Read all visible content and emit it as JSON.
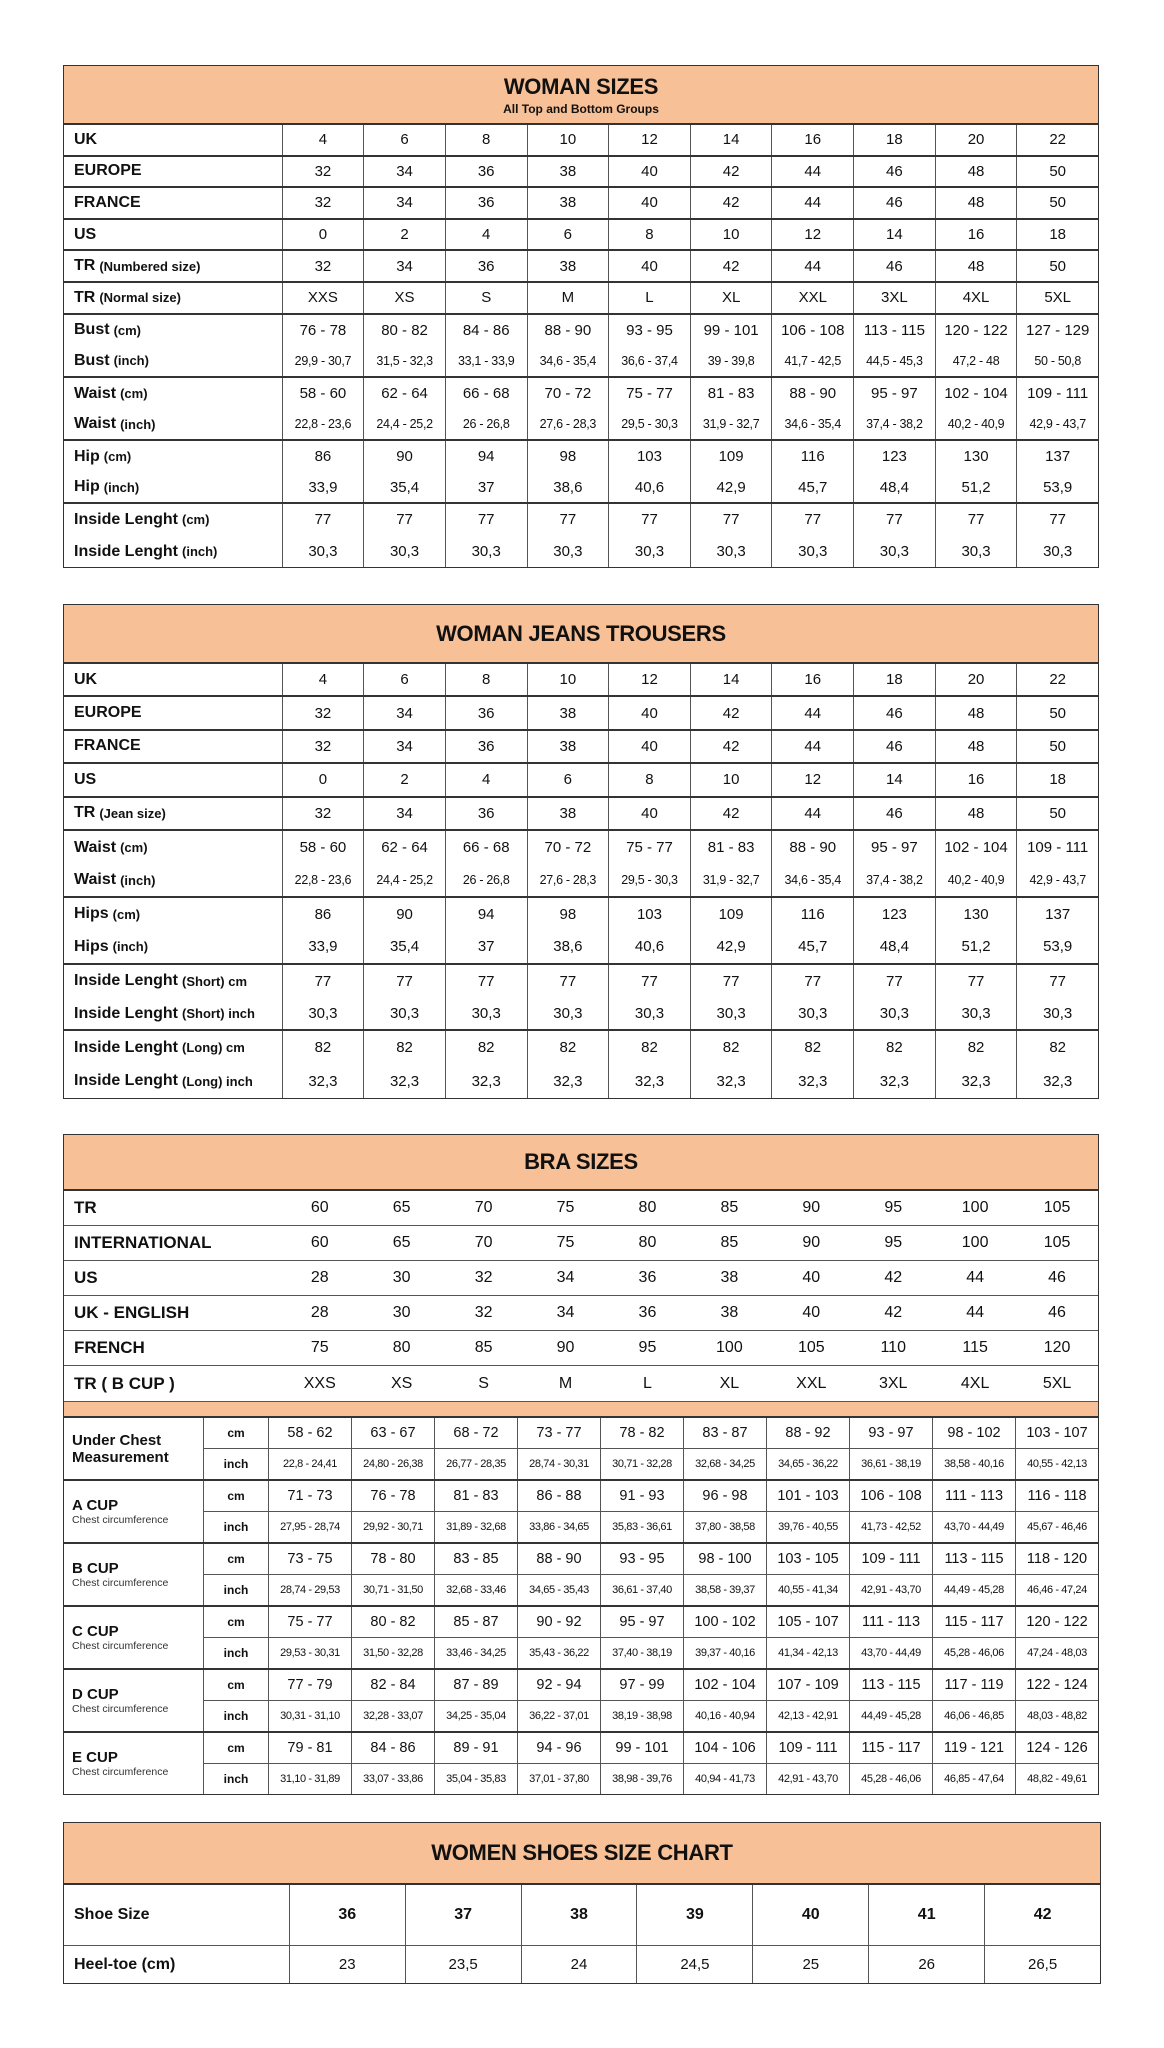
{
  "woman_sizes": {
    "title": "WOMAN SIZES",
    "subtitle": "All Top and Bottom Groups",
    "groups": [
      [
        {
          "label": "UK",
          "unit": "",
          "values": [
            "4",
            "6",
            "8",
            "10",
            "12",
            "14",
            "16",
            "18",
            "20",
            "22"
          ]
        }
      ],
      [
        {
          "label": "EUROPE",
          "unit": "",
          "values": [
            "32",
            "34",
            "36",
            "38",
            "40",
            "42",
            "44",
            "46",
            "48",
            "50"
          ]
        }
      ],
      [
        {
          "label": "FRANCE",
          "unit": "",
          "values": [
            "32",
            "34",
            "36",
            "38",
            "40",
            "42",
            "44",
            "46",
            "48",
            "50"
          ]
        }
      ],
      [
        {
          "label": "US",
          "unit": "",
          "values": [
            "0",
            "2",
            "4",
            "6",
            "8",
            "10",
            "12",
            "14",
            "16",
            "18"
          ]
        }
      ],
      [
        {
          "label": "TR",
          "unit": "(Numbered size)",
          "values": [
            "32",
            "34",
            "36",
            "38",
            "40",
            "42",
            "44",
            "46",
            "48",
            "50"
          ]
        }
      ],
      [
        {
          "label": "TR",
          "unit": "(Normal size)",
          "values": [
            "XXS",
            "XS",
            "S",
            "M",
            "L",
            "XL",
            "XXL",
            "3XL",
            "4XL",
            "5XL"
          ]
        }
      ],
      [
        {
          "label": "Bust",
          "unit": "(cm)",
          "values": [
            "76 - 78",
            "80 - 82",
            "84 - 86",
            "88 - 90",
            "93 - 95",
            "99 - 101",
            "106 - 108",
            "113 - 115",
            "120 - 122",
            "127 - 129"
          ]
        },
        {
          "label": "Bust",
          "unit": "(inch)",
          "small": true,
          "values": [
            "29,9 - 30,7",
            "31,5 - 32,3",
            "33,1 - 33,9",
            "34,6 - 35,4",
            "36,6 - 37,4",
            "39 - 39,8",
            "41,7 - 42,5",
            "44,5 - 45,3",
            "47,2 - 48",
            "50 - 50,8"
          ]
        }
      ],
      [
        {
          "label": "Waist",
          "unit": "(cm)",
          "values": [
            "58 - 60",
            "62 - 64",
            "66 - 68",
            "70 - 72",
            "75 - 77",
            "81 - 83",
            "88 - 90",
            "95 - 97",
            "102 - 104",
            "109 - 111"
          ]
        },
        {
          "label": "Waist",
          "unit": "(inch)",
          "small": true,
          "values": [
            "22,8 - 23,6",
            "24,4 - 25,2",
            "26 - 26,8",
            "27,6 - 28,3",
            "29,5 - 30,3",
            "31,9 - 32,7",
            "34,6 - 35,4",
            "37,4 - 38,2",
            "40,2 - 40,9",
            "42,9 - 43,7"
          ]
        }
      ],
      [
        {
          "label": "Hip",
          "unit": "(cm)",
          "values": [
            "86",
            "90",
            "94",
            "98",
            "103",
            "109",
            "116",
            "123",
            "130",
            "137"
          ]
        },
        {
          "label": "Hip",
          "unit": "(inch)",
          "values": [
            "33,9",
            "35,4",
            "37",
            "38,6",
            "40,6",
            "42,9",
            "45,7",
            "48,4",
            "51,2",
            "53,9"
          ]
        }
      ],
      [
        {
          "label": "Inside Lenght",
          "unit": "(cm)",
          "values": [
            "77",
            "77",
            "77",
            "77",
            "77",
            "77",
            "77",
            "77",
            "77",
            "77"
          ]
        },
        {
          "label": "Inside Lenght",
          "unit": "(inch)",
          "values": [
            "30,3",
            "30,3",
            "30,3",
            "30,3",
            "30,3",
            "30,3",
            "30,3",
            "30,3",
            "30,3",
            "30,3"
          ]
        }
      ]
    ]
  },
  "jeans": {
    "title": "WOMAN JEANS TROUSERS",
    "groups": [
      [
        {
          "label": "UK",
          "unit": "",
          "values": [
            "4",
            "6",
            "8",
            "10",
            "12",
            "14",
            "16",
            "18",
            "20",
            "22"
          ]
        }
      ],
      [
        {
          "label": "EUROPE",
          "unit": "",
          "values": [
            "32",
            "34",
            "36",
            "38",
            "40",
            "42",
            "44",
            "46",
            "48",
            "50"
          ]
        }
      ],
      [
        {
          "label": "FRANCE",
          "unit": "",
          "values": [
            "32",
            "34",
            "36",
            "38",
            "40",
            "42",
            "44",
            "46",
            "48",
            "50"
          ]
        }
      ],
      [
        {
          "label": "US",
          "unit": "",
          "values": [
            "0",
            "2",
            "4",
            "6",
            "8",
            "10",
            "12",
            "14",
            "16",
            "18"
          ]
        }
      ],
      [
        {
          "label": "TR",
          "unit": "(Jean size)",
          "values": [
            "32",
            "34",
            "36",
            "38",
            "40",
            "42",
            "44",
            "46",
            "48",
            "50"
          ]
        }
      ],
      [
        {
          "label": "Waist",
          "unit": "(cm)",
          "values": [
            "58 - 60",
            "62 - 64",
            "66 - 68",
            "70 - 72",
            "75 - 77",
            "81 - 83",
            "88 - 90",
            "95 - 97",
            "102 - 104",
            "109 - 111"
          ]
        },
        {
          "label": "Waist",
          "unit": "(inch)",
          "small": true,
          "values": [
            "22,8 - 23,6",
            "24,4 - 25,2",
            "26 - 26,8",
            "27,6 - 28,3",
            "29,5 - 30,3",
            "31,9 - 32,7",
            "34,6 - 35,4",
            "37,4 - 38,2",
            "40,2 - 40,9",
            "42,9 - 43,7"
          ]
        }
      ],
      [
        {
          "label": "Hips",
          "unit": "(cm)",
          "values": [
            "86",
            "90",
            "94",
            "98",
            "103",
            "109",
            "116",
            "123",
            "130",
            "137"
          ]
        },
        {
          "label": "Hips",
          "unit": "(inch)",
          "values": [
            "33,9",
            "35,4",
            "37",
            "38,6",
            "40,6",
            "42,9",
            "45,7",
            "48,4",
            "51,2",
            "53,9"
          ]
        }
      ],
      [
        {
          "label": "Inside Lenght",
          "unit": "(Short) cm",
          "values": [
            "77",
            "77",
            "77",
            "77",
            "77",
            "77",
            "77",
            "77",
            "77",
            "77"
          ]
        },
        {
          "label": "Inside Lenght",
          "unit": "(Short) inch",
          "values": [
            "30,3",
            "30,3",
            "30,3",
            "30,3",
            "30,3",
            "30,3",
            "30,3",
            "30,3",
            "30,3",
            "30,3"
          ]
        }
      ],
      [
        {
          "label": "Inside Lenght",
          "unit": "(Long) cm",
          "values": [
            "82",
            "82",
            "82",
            "82",
            "82",
            "82",
            "82",
            "82",
            "82",
            "82"
          ]
        },
        {
          "label": "Inside Lenght",
          "unit": "(Long) inch",
          "values": [
            "32,3",
            "32,3",
            "32,3",
            "32,3",
            "32,3",
            "32,3",
            "32,3",
            "32,3",
            "32,3",
            "32,3"
          ]
        }
      ]
    ]
  },
  "bra": {
    "title": "BRA SIZES",
    "sizes": [
      {
        "label": "TR",
        "values": [
          "60",
          "65",
          "70",
          "75",
          "80",
          "85",
          "90",
          "95",
          "100",
          "105"
        ]
      },
      {
        "label": "INTERNATIONAL",
        "values": [
          "60",
          "65",
          "70",
          "75",
          "80",
          "85",
          "90",
          "95",
          "100",
          "105"
        ]
      },
      {
        "label": "US",
        "values": [
          "28",
          "30",
          "32",
          "34",
          "36",
          "38",
          "40",
          "42",
          "44",
          "46"
        ]
      },
      {
        "label": "UK - ENGLISH",
        "values": [
          "28",
          "30",
          "32",
          "34",
          "36",
          "38",
          "40",
          "42",
          "44",
          "46"
        ]
      },
      {
        "label": "FRENCH",
        "values": [
          "75",
          "80",
          "85",
          "90",
          "95",
          "100",
          "105",
          "110",
          "115",
          "120"
        ]
      },
      {
        "label": "TR ( B CUP )",
        "values": [
          "XXS",
          "XS",
          "S",
          "M",
          "L",
          "XL",
          "XXL",
          "3XL",
          "4XL",
          "5XL"
        ]
      }
    ],
    "measurements": [
      {
        "label": "Under Chest Measurement",
        "note": "",
        "cm_label": "cm",
        "inch_label": "inch",
        "cm": [
          "58 - 62",
          "63 - 67",
          "68 - 72",
          "73 - 77",
          "78 - 82",
          "83 - 87",
          "88 - 92",
          "93 - 97",
          "98 - 102",
          "103 - 107"
        ],
        "inch": [
          "22,8 - 24,41",
          "24,80 - 26,38",
          "26,77 - 28,35",
          "28,74 - 30,31",
          "30,71 - 32,28",
          "32,68 - 34,25",
          "34,65 - 36,22",
          "36,61 - 38,19",
          "38,58 - 40,16",
          "40,55 - 42,13"
        ]
      },
      {
        "label": "A CUP",
        "note": "Chest circumference",
        "cm_label": "cm",
        "inch_label": "inch",
        "cm": [
          "71 - 73",
          "76 - 78",
          "81 - 83",
          "86 - 88",
          "91 - 93",
          "96 - 98",
          "101 - 103",
          "106 - 108",
          "111 - 113",
          "116 - 118"
        ],
        "inch": [
          "27,95 - 28,74",
          "29,92 - 30,71",
          "31,89 - 32,68",
          "33,86 - 34,65",
          "35,83 - 36,61",
          "37,80 - 38,58",
          "39,76 - 40,55",
          "41,73 - 42,52",
          "43,70 - 44,49",
          "45,67 - 46,46"
        ]
      },
      {
        "label": "B CUP",
        "note": "Chest circumference",
        "cm_label": "cm",
        "inch_label": "inch",
        "cm": [
          "73 - 75",
          "78 - 80",
          "83 - 85",
          "88 - 90",
          "93 - 95",
          "98 - 100",
          "103 - 105",
          "109 - 111",
          "113 - 115",
          "118 - 120"
        ],
        "inch": [
          "28,74 - 29,53",
          "30,71 - 31,50",
          "32,68 - 33,46",
          "34,65 - 35,43",
          "36,61 - 37,40",
          "38,58 - 39,37",
          "40,55 - 41,34",
          "42,91 - 43,70",
          "44,49 - 45,28",
          "46,46 - 47,24"
        ]
      },
      {
        "label": "C CUP",
        "note": "Chest circumference",
        "cm_label": "cm",
        "inch_label": "inch",
        "cm": [
          "75 - 77",
          "80 - 82",
          "85 - 87",
          "90 - 92",
          "95 - 97",
          "100 - 102",
          "105 - 107",
          "111 - 113",
          "115 - 117",
          "120 - 122"
        ],
        "inch": [
          "29,53 - 30,31",
          "31,50 - 32,28",
          "33,46 - 34,25",
          "35,43 - 36,22",
          "37,40 - 38,19",
          "39,37 - 40,16",
          "41,34 - 42,13",
          "43,70 - 44,49",
          "45,28 - 46,06",
          "47,24 - 48,03"
        ]
      },
      {
        "label": "D CUP",
        "note": "Chest circumference",
        "cm_label": "cm",
        "inch_label": "inch",
        "cm": [
          "77 - 79",
          "82 - 84",
          "87 - 89",
          "92 - 94",
          "97 - 99",
          "102 - 104",
          "107 - 109",
          "113 - 115",
          "117 - 119",
          "122 - 124"
        ],
        "inch": [
          "30,31 - 31,10",
          "32,28 - 33,07",
          "34,25 - 35,04",
          "36,22 - 37,01",
          "38,19 - 38,98",
          "40,16 - 40,94",
          "42,13 - 42,91",
          "44,49 - 45,28",
          "46,06 - 46,85",
          "48,03 - 48,82"
        ]
      },
      {
        "label": "E CUP",
        "note": "Chest circumference",
        "cm_label": "cm",
        "inch_label": "inch",
        "cm": [
          "79 - 81",
          "84 - 86",
          "89 - 91",
          "94 - 96",
          "99 - 101",
          "104 - 106",
          "109 - 111",
          "115 - 117",
          "119 - 121",
          "124 - 126"
        ],
        "inch": [
          "31,10 - 31,89",
          "33,07 - 33,86",
          "35,04 - 35,83",
          "37,01 - 37,80",
          "38,98 - 39,76",
          "40,94 - 41,73",
          "42,91 - 43,70",
          "45,28 - 46,06",
          "46,85 - 47,64",
          "48,82 - 49,61"
        ]
      }
    ]
  },
  "shoes": {
    "title": "WOMEN SHOES SIZE CHART",
    "rows": [
      {
        "label": "Shoe Size",
        "values": [
          "36",
          "37",
          "38",
          "39",
          "40",
          "41",
          "42"
        ]
      },
      {
        "label": "Heel-toe (cm)",
        "values": [
          "23",
          "23,5",
          "24",
          "24,5",
          "25",
          "26",
          "26,5"
        ]
      }
    ]
  },
  "colors": {
    "header_bg": "#f7c096",
    "border": "#333333"
  }
}
